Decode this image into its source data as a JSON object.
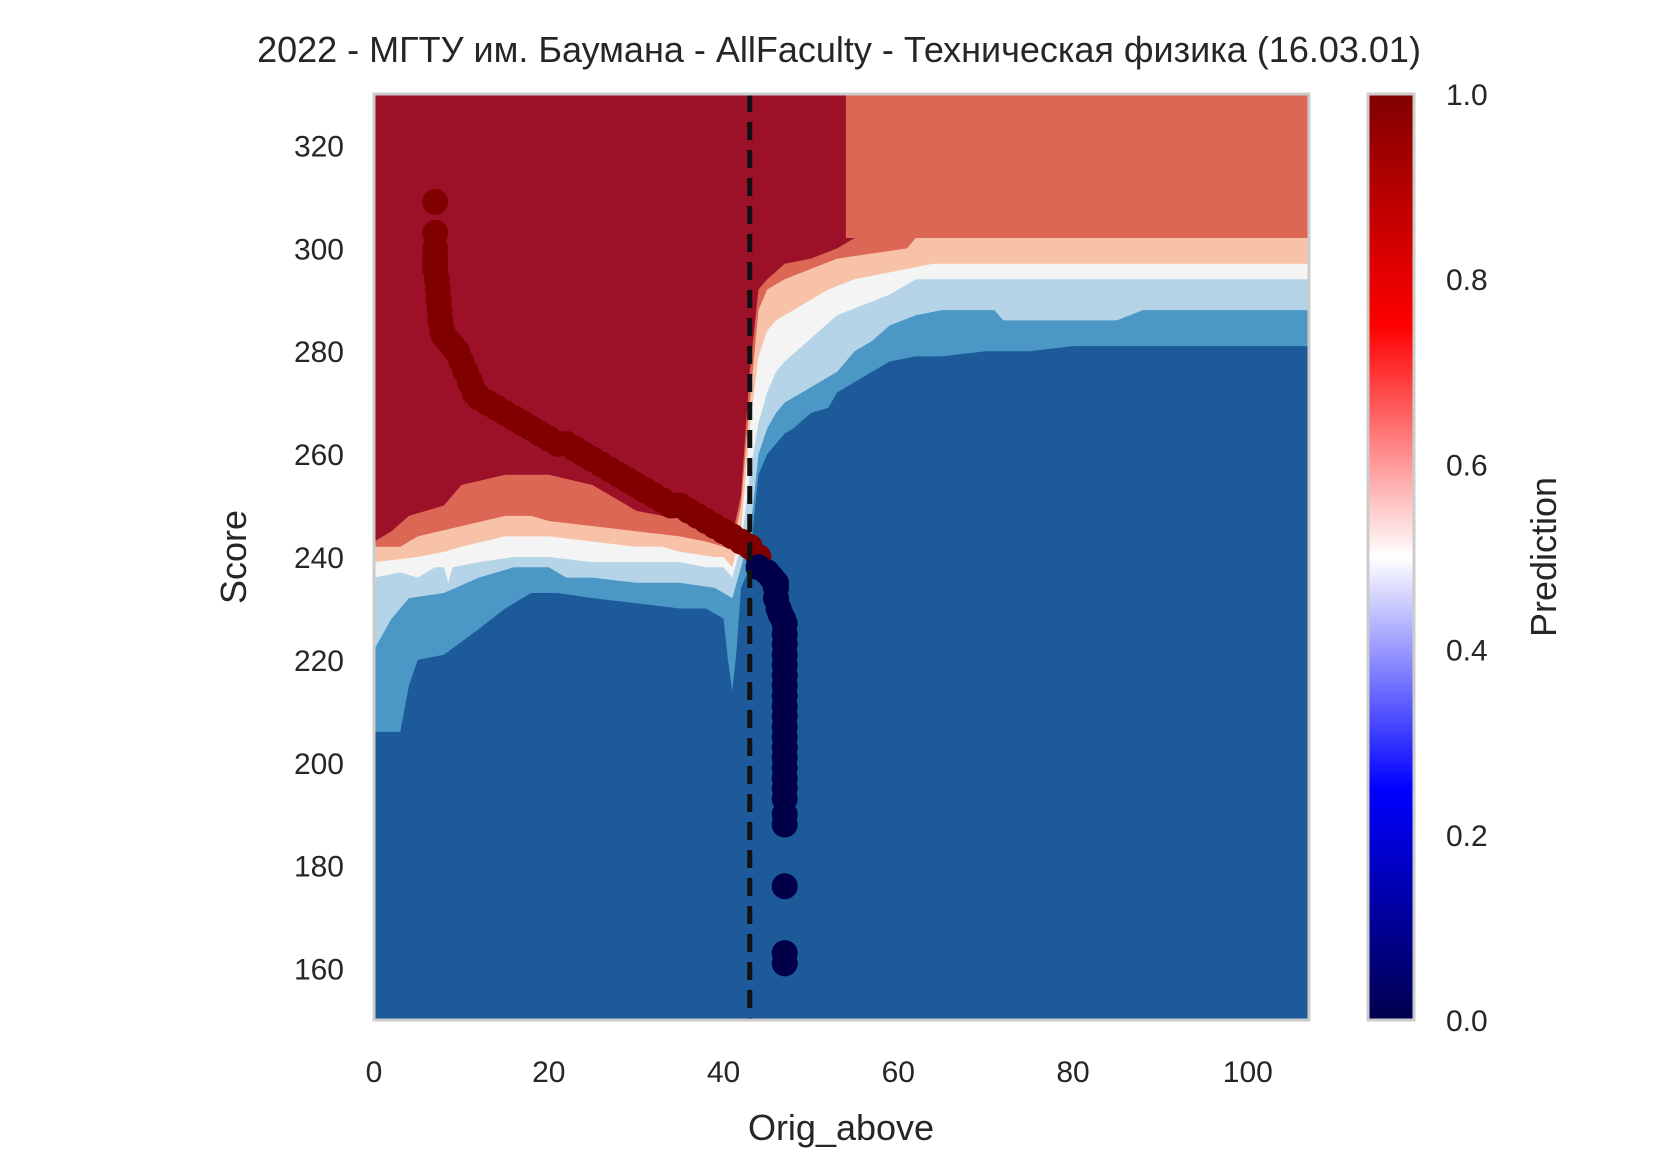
{
  "chart_data": {
    "type": "heatmap",
    "title": "2022 - МГТУ им. Баумана - AllFaculty - Техническая физика (16.03.01)",
    "xlabel": "Orig_above",
    "ylabel": "Score",
    "xlim": [
      0,
      107
    ],
    "ylim": [
      150,
      330
    ],
    "xticks": [
      0,
      20,
      40,
      60,
      80,
      100
    ],
    "yticks": [
      160,
      180,
      200,
      220,
      240,
      260,
      280,
      300,
      320
    ],
    "grid": false,
    "threshold_line": {
      "x": 43,
      "style": "dashed",
      "color": "#111111"
    },
    "colorbar": {
      "label": "Prediction",
      "colormap": "seismic",
      "range": [
        0,
        1
      ],
      "ticks": [
        "0.0",
        "0.2",
        "0.4",
        "0.6",
        "0.8",
        "1.0"
      ]
    },
    "contour_levels": [
      {
        "level": "0.0-0.1",
        "color": "#1c5a99"
      },
      {
        "level": "0.1-0.3",
        "color": "#4b98c6"
      },
      {
        "level": "0.3-0.45",
        "color": "#b5d4e8"
      },
      {
        "level": "0.45-0.55",
        "color": "#f4f4f4"
      },
      {
        "level": "0.55-0.7",
        "color": "#f8c2a9"
      },
      {
        "level": "0.7-0.9",
        "color": "#db6754"
      },
      {
        "level": "0.9-1.0",
        "color": "#9c1128"
      }
    ],
    "boundaries": {
      "b1": [
        [
          0,
          206
        ],
        [
          3,
          206
        ],
        [
          4,
          215
        ],
        [
          5,
          220
        ],
        [
          8,
          221
        ],
        [
          12,
          226
        ],
        [
          15,
          230
        ],
        [
          18,
          233
        ],
        [
          21,
          233
        ],
        [
          25,
          232
        ],
        [
          30,
          231
        ],
        [
          35,
          230
        ],
        [
          38,
          230
        ],
        [
          40,
          228
        ],
        [
          40.5,
          220
        ],
        [
          41,
          214
        ],
        [
          41.5,
          222
        ],
        [
          42,
          234
        ],
        [
          42.5,
          236
        ],
        [
          43,
          238
        ],
        [
          43.5,
          248
        ],
        [
          44,
          256
        ],
        [
          45,
          260
        ],
        [
          46,
          262
        ],
        [
          47,
          264
        ],
        [
          48,
          265
        ],
        [
          50,
          268
        ],
        [
          52,
          269
        ],
        [
          53,
          272
        ],
        [
          55,
          274
        ],
        [
          57,
          276
        ],
        [
          59,
          278
        ],
        [
          62,
          279
        ],
        [
          65,
          279
        ],
        [
          70,
          280
        ],
        [
          75,
          280
        ],
        [
          80,
          281
        ],
        [
          90,
          281
        ],
        [
          107,
          281
        ]
      ],
      "b2": [
        [
          0,
          222
        ],
        [
          2,
          228
        ],
        [
          4,
          232
        ],
        [
          8,
          233
        ],
        [
          12,
          236
        ],
        [
          16,
          238
        ],
        [
          20,
          238
        ],
        [
          22,
          236
        ],
        [
          25,
          236
        ],
        [
          30,
          235
        ],
        [
          35,
          235
        ],
        [
          39,
          234
        ],
        [
          41,
          232
        ],
        [
          42,
          238
        ],
        [
          43,
          244
        ],
        [
          44,
          260
        ],
        [
          45,
          265
        ],
        [
          46,
          268
        ],
        [
          47,
          270
        ],
        [
          49,
          272
        ],
        [
          51,
          274
        ],
        [
          53,
          276
        ],
        [
          55,
          280
        ],
        [
          57,
          282
        ],
        [
          59,
          285
        ],
        [
          62,
          287
        ],
        [
          65,
          288
        ],
        [
          71,
          288
        ],
        [
          72,
          286
        ],
        [
          78,
          286
        ],
        [
          85,
          286
        ],
        [
          88,
          288
        ],
        [
          95,
          288
        ],
        [
          107,
          288
        ]
      ],
      "b3": [
        [
          0,
          236
        ],
        [
          3,
          237
        ],
        [
          5,
          236
        ],
        [
          7,
          238
        ],
        [
          8,
          238
        ],
        [
          8.5,
          235
        ],
        [
          9,
          238
        ],
        [
          12,
          239
        ],
        [
          16,
          240
        ],
        [
          20,
          240
        ],
        [
          25,
          239
        ],
        [
          30,
          239
        ],
        [
          35,
          239
        ],
        [
          38,
          238
        ],
        [
          40,
          238
        ],
        [
          41,
          236
        ],
        [
          42,
          242
        ],
        [
          43,
          256
        ],
        [
          44,
          266
        ],
        [
          45,
          272
        ],
        [
          46,
          276
        ],
        [
          47,
          278
        ],
        [
          49,
          281
        ],
        [
          51,
          284
        ],
        [
          53,
          287
        ],
        [
          56,
          289
        ],
        [
          59,
          291
        ],
        [
          62,
          294
        ],
        [
          65,
          294
        ],
        [
          70,
          294
        ],
        [
          75,
          294
        ],
        [
          80,
          294
        ],
        [
          90,
          294
        ],
        [
          107,
          294
        ]
      ],
      "b4": [
        [
          0,
          239
        ],
        [
          5,
          240
        ],
        [
          8,
          241
        ],
        [
          10,
          242
        ],
        [
          15,
          244
        ],
        [
          20,
          244
        ],
        [
          25,
          243
        ],
        [
          30,
          242
        ],
        [
          33,
          242
        ],
        [
          35,
          241
        ],
        [
          39,
          240
        ],
        [
          40,
          240
        ],
        [
          41,
          238
        ],
        [
          42,
          245
        ],
        [
          43,
          265
        ],
        [
          44,
          279
        ],
        [
          45,
          284
        ],
        [
          46,
          286
        ],
        [
          48,
          288
        ],
        [
          50,
          290
        ],
        [
          52,
          292
        ],
        [
          55,
          294
        ],
        [
          58,
          295
        ],
        [
          61,
          296
        ],
        [
          64,
          297
        ],
        [
          70,
          297
        ],
        [
          80,
          297
        ],
        [
          107,
          297
        ]
      ],
      "b5": [
        [
          0,
          242
        ],
        [
          3,
          242
        ],
        [
          5,
          244
        ],
        [
          10,
          246
        ],
        [
          15,
          248
        ],
        [
          18,
          248
        ],
        [
          20,
          247
        ],
        [
          25,
          246
        ],
        [
          30,
          245
        ],
        [
          35,
          244
        ],
        [
          38,
          243
        ],
        [
          40,
          242
        ],
        [
          41,
          242
        ],
        [
          42,
          250
        ],
        [
          43,
          270
        ],
        [
          44,
          288
        ],
        [
          45,
          292
        ],
        [
          47,
          294
        ],
        [
          50,
          296
        ],
        [
          53,
          298
        ],
        [
          57,
          299
        ],
        [
          61,
          300
        ],
        [
          62,
          302
        ],
        [
          70,
          302
        ],
        [
          80,
          302
        ],
        [
          107,
          302
        ]
      ],
      "b6": [
        [
          0,
          243
        ],
        [
          2,
          245
        ],
        [
          4,
          248
        ],
        [
          8,
          250
        ],
        [
          10,
          254
        ],
        [
          15,
          256
        ],
        [
          20,
          256
        ],
        [
          25,
          254
        ],
        [
          28,
          251
        ],
        [
          30,
          249
        ],
        [
          33,
          248
        ],
        [
          36,
          248
        ],
        [
          38,
          248
        ],
        [
          40,
          248
        ],
        [
          41,
          244
        ],
        [
          42,
          252
        ],
        [
          43,
          276
        ],
        [
          44,
          292
        ],
        [
          45,
          294
        ],
        [
          47,
          297
        ],
        [
          50,
          298
        ],
        [
          53,
          300
        ],
        [
          55,
          302
        ],
        [
          58,
          304
        ],
        [
          62,
          304
        ],
        [
          63,
          306
        ],
        [
          70,
          306
        ],
        [
          80,
          306
        ],
        [
          107,
          306
        ]
      ]
    },
    "upper_right_region": {
      "x_from": 54,
      "color": "#db6754",
      "from_score": 302
    },
    "points_high_label": [
      [
        7,
        309
      ],
      [
        7,
        303
      ],
      [
        7,
        300
      ],
      [
        7,
        298
      ],
      [
        7,
        296
      ],
      [
        7.2,
        294
      ],
      [
        7.3,
        292
      ],
      [
        7.4,
        290
      ],
      [
        7.5,
        288
      ],
      [
        7.6,
        286
      ],
      [
        7.8,
        284
      ],
      [
        8,
        283
      ],
      [
        8.5,
        282
      ],
      [
        9,
        281
      ],
      [
        9.5,
        280
      ],
      [
        10,
        278
      ],
      [
        10.5,
        276
      ],
      [
        11,
        274
      ],
      [
        11.5,
        272
      ],
      [
        12,
        271
      ],
      [
        13,
        270
      ],
      [
        14,
        269
      ],
      [
        15,
        268
      ],
      [
        16,
        267
      ],
      [
        17,
        266
      ],
      [
        18,
        265
      ],
      [
        19,
        264
      ],
      [
        20,
        263
      ],
      [
        21,
        262
      ],
      [
        22,
        262
      ],
      [
        23,
        261
      ],
      [
        24,
        260
      ],
      [
        25,
        259
      ],
      [
        26,
        258
      ],
      [
        27,
        257
      ],
      [
        28,
        256
      ],
      [
        29,
        255
      ],
      [
        30,
        254
      ],
      [
        31,
        253
      ],
      [
        32,
        252
      ],
      [
        33,
        251
      ],
      [
        34,
        250
      ],
      [
        35,
        250
      ],
      [
        36,
        249
      ],
      [
        37,
        248
      ],
      [
        38,
        247
      ],
      [
        39,
        246
      ],
      [
        40,
        245
      ],
      [
        41,
        244
      ],
      [
        42,
        243
      ],
      [
        43,
        242
      ],
      [
        44,
        240
      ]
    ],
    "points_low_label": [
      [
        44,
        238
      ],
      [
        45,
        237
      ],
      [
        45.5,
        236
      ],
      [
        46,
        235
      ],
      [
        46,
        234
      ],
      [
        46,
        232
      ],
      [
        46.3,
        230
      ],
      [
        46.5,
        229
      ],
      [
        46.8,
        228
      ],
      [
        47,
        227
      ],
      [
        47,
        225
      ],
      [
        47,
        223
      ],
      [
        47,
        221
      ],
      [
        47,
        219
      ],
      [
        47,
        217
      ],
      [
        47,
        215
      ],
      [
        47,
        213
      ],
      [
        47,
        211
      ],
      [
        47,
        209
      ],
      [
        47,
        207
      ],
      [
        47,
        205
      ],
      [
        47,
        203
      ],
      [
        47,
        201
      ],
      [
        47,
        199
      ],
      [
        47,
        197
      ],
      [
        47,
        195
      ],
      [
        47,
        193
      ],
      [
        47,
        190
      ],
      [
        47,
        188
      ],
      [
        47,
        176
      ],
      [
        47,
        163
      ],
      [
        47,
        161
      ]
    ],
    "point_colors": {
      "high": "#800000",
      "low": "#00004a"
    }
  }
}
